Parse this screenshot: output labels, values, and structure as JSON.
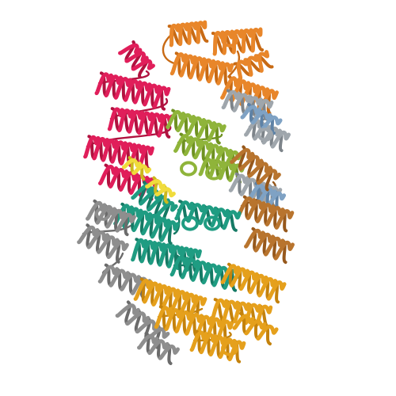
{
  "image": {
    "background": "#ffffff",
    "chains": [
      {
        "id": "orange",
        "color": "#E8862A",
        "shade": "#C86A14"
      },
      {
        "id": "crimson",
        "color": "#E01E5A",
        "shade": "#B0123F"
      },
      {
        "id": "olive",
        "color": "#8FB43A",
        "shade": "#6F9222"
      },
      {
        "id": "silver",
        "color": "#9FA6AC",
        "shade": "#7D848A"
      },
      {
        "id": "steel-blue",
        "color": "#7FA2C4",
        "shade": "#5E82A6"
      },
      {
        "id": "brown",
        "color": "#B8742E",
        "shade": "#96581C"
      },
      {
        "id": "teal",
        "color": "#1F9C82",
        "shade": "#157A65"
      },
      {
        "id": "gray",
        "color": "#8E8E8E",
        "shade": "#6B6B6B"
      },
      {
        "id": "amber",
        "color": "#E5A01C",
        "shade": "#C4820C"
      },
      {
        "id": "yellow",
        "color": "#F0DC3C",
        "shade": "#CCB81E"
      }
    ]
  }
}
